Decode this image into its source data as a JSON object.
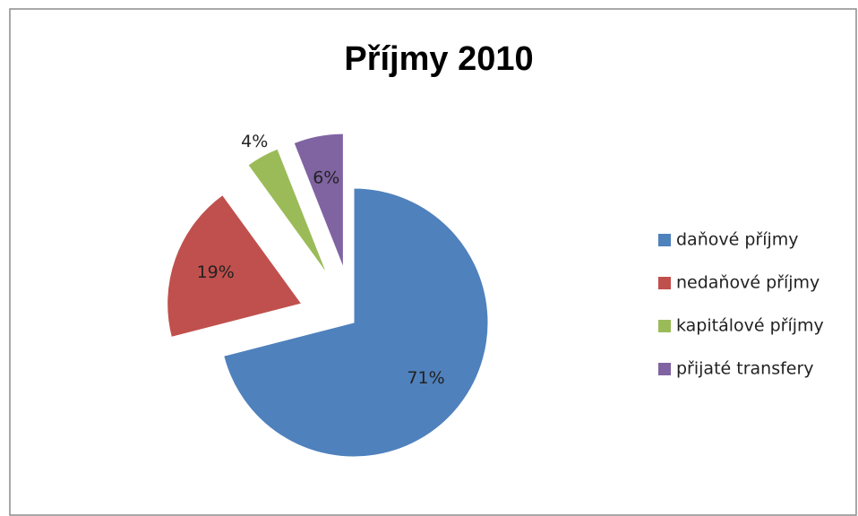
{
  "chart_data": {
    "type": "pie",
    "title": "Příjmy 2010",
    "categories": [
      "daňové příjmy",
      "nedaňové příjmy",
      "kapitálové příjmy",
      "přijaté transfery"
    ],
    "values": [
      71,
      19,
      4,
      6
    ],
    "value_labels": [
      "71%",
      "19%",
      "4%",
      "6%"
    ],
    "colors": [
      "#4f81bd",
      "#c0504d",
      "#9bbb59",
      "#8064a2"
    ],
    "legend": "right"
  }
}
